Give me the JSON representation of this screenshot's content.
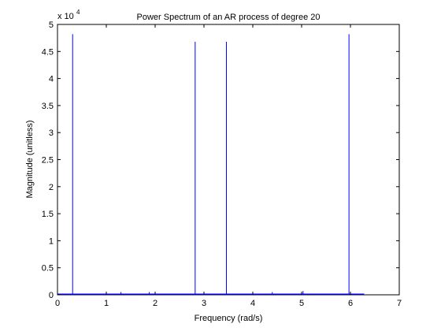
{
  "chart_data": {
    "type": "line",
    "title": "Power Spectrum of an AR process of degree 20",
    "xlabel": "Frequency (rad/s)",
    "ylabel": "Magnitude (unitless)",
    "xlim": [
      0,
      7
    ],
    "ylim": [
      0,
      5
    ],
    "exponent_label": {
      "base": "x 10",
      "power": "4"
    },
    "x_ticks": [
      0,
      1,
      2,
      3,
      4,
      5,
      6,
      7
    ],
    "x_tick_labels": [
      "0",
      "1",
      "2",
      "3",
      "4",
      "5",
      "6",
      "7"
    ],
    "y_ticks": [
      0,
      0.5,
      1,
      1.5,
      2,
      2.5,
      3,
      3.5,
      4,
      4.5,
      5
    ],
    "y_tick_labels": [
      "0",
      "0.5",
      "1",
      "1.5",
      "2",
      "2.5",
      "3",
      "3.5",
      "4",
      "4.5",
      "5"
    ],
    "grid": false,
    "series_color": "#0000ff",
    "baseline": {
      "x_start": 0.0,
      "x_end": 6.28,
      "value": 0.012
    },
    "peaks": [
      {
        "x": 0.31,
        "value": 4.82
      },
      {
        "x": 2.82,
        "value": 4.68
      },
      {
        "x": 3.46,
        "value": 4.68
      },
      {
        "x": 5.97,
        "value": 4.82
      }
    ],
    "minor_peaks": [
      {
        "x": 1.3,
        "value": 0.05
      },
      {
        "x": 1.88,
        "value": 0.05
      },
      {
        "x": 4.4,
        "value": 0.05
      },
      {
        "x": 5.03,
        "value": 0.07
      }
    ]
  }
}
